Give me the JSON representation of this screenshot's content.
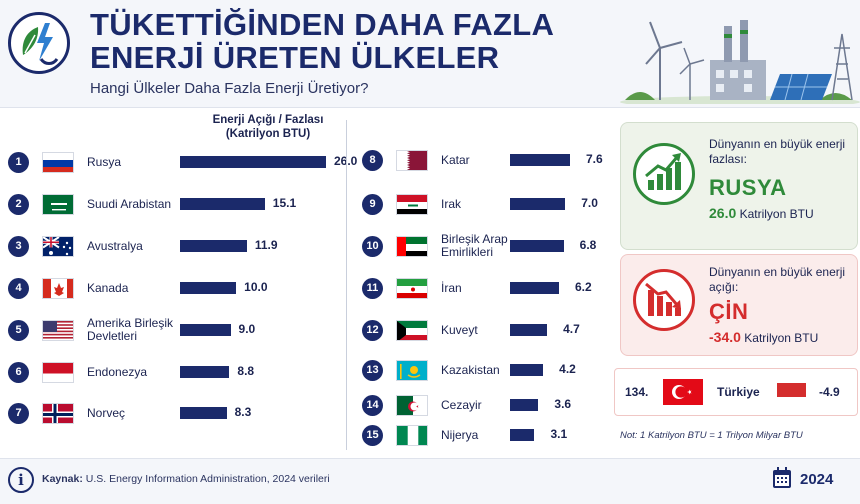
{
  "header": {
    "title_line1": "TÜKETTİĞİNDEN DAHA FAZLA",
    "title_line2": "ENERJİ ÜRETEN ÜLKELER",
    "subtitle": "Hangi Ülkeler Daha Fazla Enerji Üretiyor?"
  },
  "column_header": {
    "line1": "Enerji Açığı / Fazlası",
    "line2": "(Katrilyon BTU)"
  },
  "chart_data": {
    "type": "bar",
    "orientation": "horizontal",
    "ylabel": "Enerji Açığı / Fazlası (Katrilyon BTU)",
    "categories": [
      "Rusya",
      "Suudi Arabistan",
      "Avustralya",
      "Kanada",
      "Amerika Birleşik Devletleri",
      "Endonezya",
      "Norveç",
      "Katar",
      "Irak",
      "Birleşik Arap Emirlikleri",
      "İran",
      "Kuveyt",
      "Kazakistan",
      "Cezayir",
      "Nijerya"
    ],
    "ranks": [
      "1",
      "2",
      "3",
      "4",
      "5",
      "6",
      "7",
      "8",
      "9",
      "10",
      "11",
      "12",
      "13",
      "14",
      "15"
    ],
    "values": [
      26.0,
      15.1,
      11.9,
      10.0,
      9.0,
      8.8,
      8.3,
      7.6,
      7.0,
      6.8,
      6.2,
      4.7,
      4.2,
      3.6,
      3.1
    ],
    "value_labels": [
      "26.0",
      "15.1",
      "11.9",
      "10.0",
      "9.0",
      "8.8",
      "8.3",
      "7.6",
      "7.0",
      "6.8",
      "6.2",
      "4.7",
      "4.2",
      "3.6",
      "3.1"
    ],
    "bar_color": "#1b2a6b",
    "flags": [
      "russia-flag",
      "saudi-arabia-flag",
      "australia-flag",
      "canada-flag",
      "usa-flag",
      "indonesia-flag",
      "norway-flag",
      "qatar-flag",
      "iraq-flag",
      "uae-flag",
      "iran-flag",
      "kuwait-flag",
      "kazakhstan-flag",
      "algeria-flag",
      "nigeria-flag"
    ]
  },
  "surplus_card": {
    "label": "Dünyanın en büyük enerji fazlası:",
    "country": "RUSYA",
    "value": "26.0",
    "unit": "Katrilyon BTU",
    "color": "#2f8a3a",
    "icon": "rising-chart-icon"
  },
  "deficit_card": {
    "label": "Dünyanın en büyük enerji açığı:",
    "country": "ÇİN",
    "value": "-34.0",
    "unit": "Katrilyon BTU",
    "color": "#d42d2d",
    "icon": "falling-chart-icon"
  },
  "turkey_row": {
    "rank": "134.",
    "country": "Türkiye",
    "value": -4.9,
    "value_label": "-4.9",
    "color": "#d42d2d"
  },
  "note": "Not: 1 Katrilyon BTU = 1 Trilyon Milyar BTU",
  "footer": {
    "source_label": "Kaynak:",
    "source_text": " U.S. Energy Information Administration, 2024 verileri",
    "year": "2024"
  }
}
